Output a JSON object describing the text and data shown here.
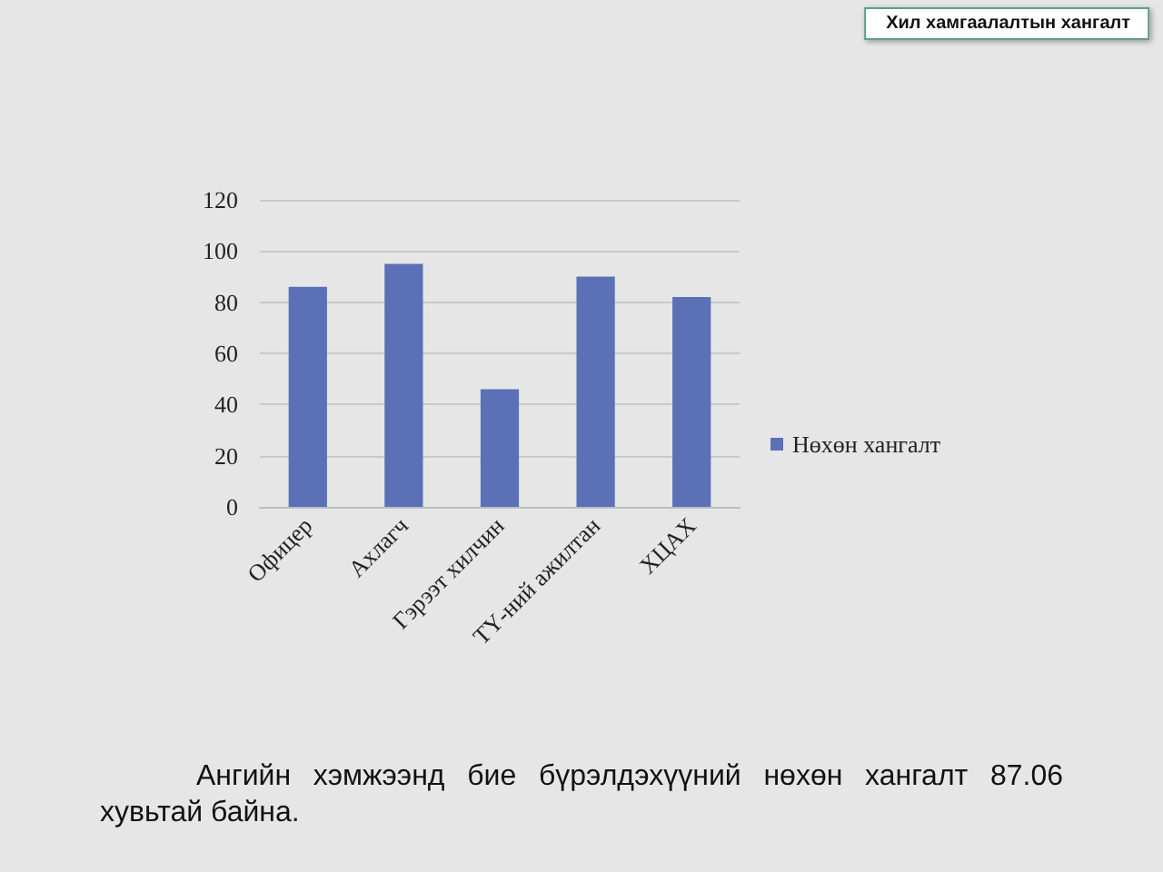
{
  "chart_data": {
    "type": "bar",
    "title": "Хил хамгаалалтын хангалт",
    "categories": [
      "Офицер",
      "Ахлагч",
      "Гэрээт хилчин",
      "ТҮ-ний ажилтан",
      "ХЦАХ"
    ],
    "series": [
      {
        "name": "Нөхөн хангалт",
        "color": "#5b70b7",
        "values": [
          86,
          95,
          46,
          90,
          82
        ]
      }
    ],
    "ylim": [
      0,
      120
    ],
    "yticks": [
      0,
      20,
      40,
      60,
      80,
      100,
      120
    ],
    "grid": "y",
    "legend": "right",
    "annotations": [
      "Ангийн хэмжээнд бие бүрэлдэхүүний нөхөн хангалт 87.06 хувьтай байна."
    ]
  }
}
